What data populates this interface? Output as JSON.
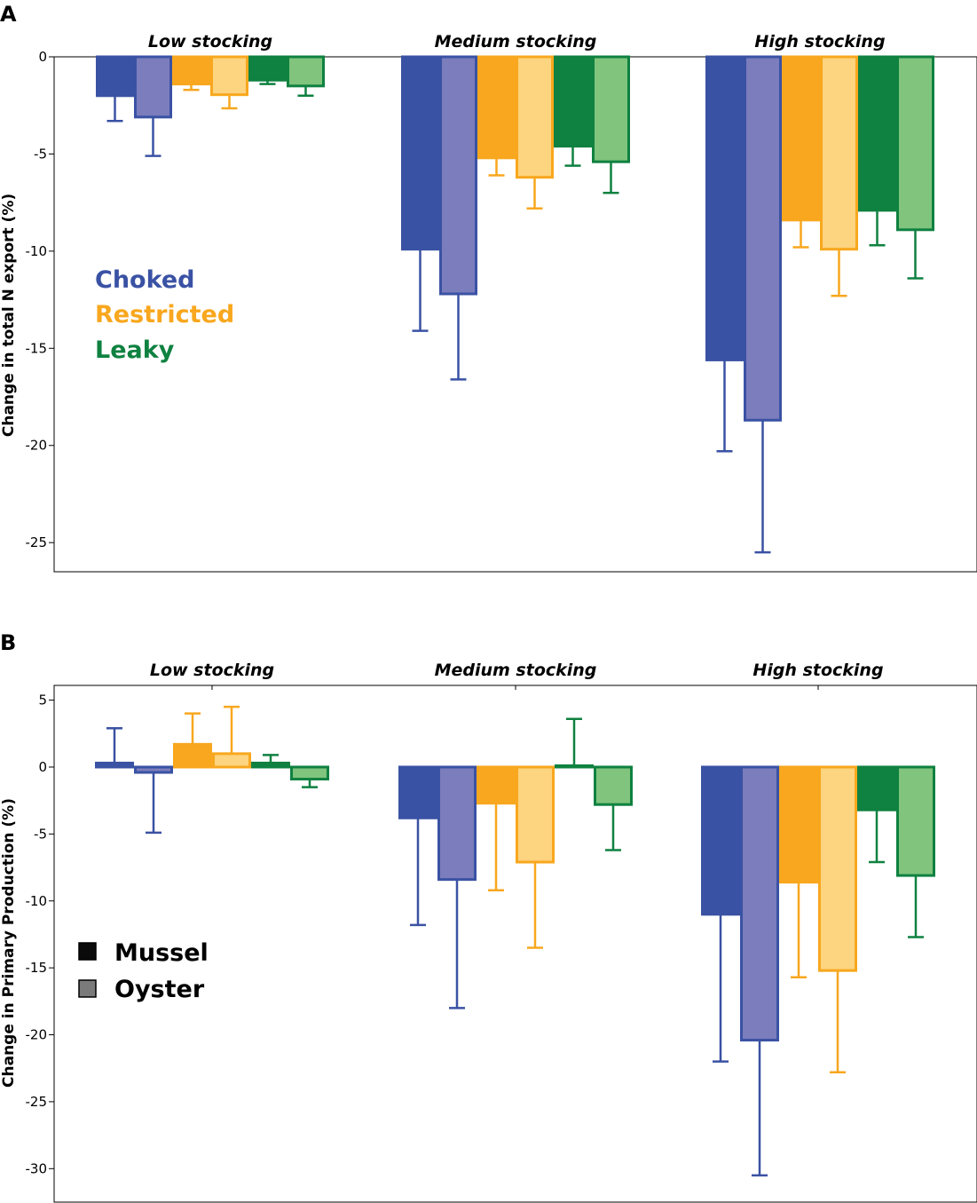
{
  "figure": {
    "legend_connectivity": [
      {
        "label": "Choked",
        "color": "#3a52a4"
      },
      {
        "label": "Restricted",
        "color": "#f8a71e"
      },
      {
        "label": "Leaky",
        "color": "#0f8140"
      }
    ],
    "legend_species": [
      {
        "label": "Mussel",
        "swatch": "#0a0a0a"
      },
      {
        "label": "Oyster",
        "swatch": "#7a7a7a"
      }
    ]
  },
  "chart_data": [
    {
      "panel": "A",
      "type": "bar",
      "ylabel": "Change in total N export (%)",
      "ylim": [
        -26.5,
        0
      ],
      "yticks": [
        "0",
        "-5",
        "-10",
        "-15",
        "-20",
        "-25"
      ],
      "groups": [
        "Low stocking",
        "Medium stocking",
        "High stocking"
      ],
      "series": [
        {
          "name": "Choked Mussel",
          "fill": "#3a52a4",
          "stroke": "#3a52a4",
          "values": [
            -2.0,
            -9.9,
            -15.6
          ],
          "errors": [
            1.3,
            4.2,
            4.7
          ]
        },
        {
          "name": "Choked Oyster",
          "fill": "#7b7dbc",
          "stroke": "#3a52a4",
          "values": [
            -3.1,
            -12.2,
            -18.7
          ],
          "errors": [
            2.0,
            4.4,
            6.8
          ]
        },
        {
          "name": "Restricted Mussel",
          "fill": "#f8a71e",
          "stroke": "#f8a71e",
          "values": [
            -1.4,
            -5.2,
            -8.4
          ],
          "errors": [
            0.3,
            0.9,
            1.4
          ]
        },
        {
          "name": "Restricted Oyster",
          "fill": "#fdd47f",
          "stroke": "#f8a71e",
          "values": [
            -1.95,
            -6.2,
            -9.9
          ],
          "errors": [
            0.7,
            1.6,
            2.4
          ]
        },
        {
          "name": "Leaky Mussel",
          "fill": "#0f8140",
          "stroke": "#0f8140",
          "values": [
            -1.2,
            -4.6,
            -7.9
          ],
          "errors": [
            0.2,
            1.0,
            1.8
          ]
        },
        {
          "name": "Leaky Oyster",
          "fill": "#80c47e",
          "stroke": "#0f8140",
          "values": [
            -1.5,
            -5.4,
            -8.9
          ],
          "errors": [
            0.5,
            1.6,
            2.5
          ]
        }
      ]
    },
    {
      "panel": "B",
      "type": "bar",
      "ylabel": "Change in Primary Production (%)",
      "ylim": [
        -32.5,
        6.1
      ],
      "yticks": [
        "5",
        "0",
        "-5",
        "-10",
        "-15",
        "-20",
        "-25",
        "-30"
      ],
      "groups": [
        "Low stocking",
        "Medium stocking",
        "High stocking"
      ],
      "series": [
        {
          "name": "Choked Mussel",
          "fill": "#3a52a4",
          "stroke": "#3a52a4",
          "values": [
            0.3,
            -3.8,
            -11.0
          ],
          "errors": [
            2.6,
            8.0,
            11.0
          ]
        },
        {
          "name": "Choked Oyster",
          "fill": "#7b7dbc",
          "stroke": "#3a52a4",
          "values": [
            -0.4,
            -8.4,
            -20.4
          ],
          "errors": [
            4.5,
            9.6,
            10.1
          ]
        },
        {
          "name": "Restricted Mussel",
          "fill": "#f8a71e",
          "stroke": "#f8a71e",
          "values": [
            1.7,
            -2.7,
            -8.6
          ],
          "errors": [
            2.3,
            6.5,
            7.1
          ]
        },
        {
          "name": "Restricted Oyster",
          "fill": "#fdd47f",
          "stroke": "#f8a71e",
          "values": [
            1.0,
            -7.1,
            -15.2
          ],
          "errors": [
            3.5,
            6.4,
            7.6
          ]
        },
        {
          "name": "Leaky Mussel",
          "fill": "#0f8140",
          "stroke": "#0f8140",
          "values": [
            0.3,
            0.1,
            -3.2
          ],
          "errors": [
            0.6,
            3.5,
            3.9
          ]
        },
        {
          "name": "Leaky Oyster",
          "fill": "#80c47e",
          "stroke": "#0f8140",
          "values": [
            -0.9,
            -2.8,
            -8.1
          ],
          "errors": [
            0.6,
            3.4,
            4.6
          ]
        }
      ]
    }
  ]
}
